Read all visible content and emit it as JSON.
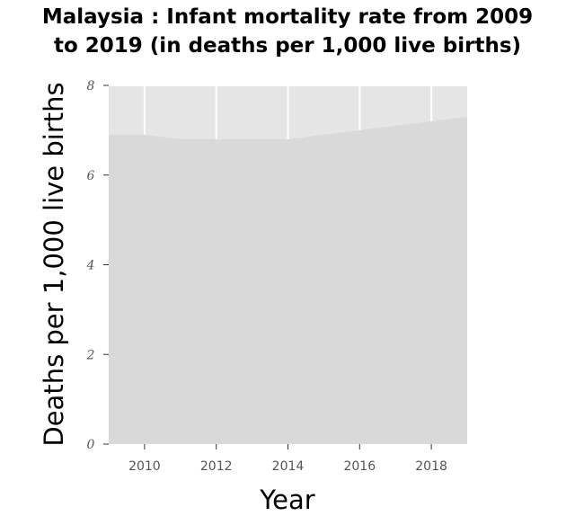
{
  "chart_data": {
    "type": "area",
    "title_lines": [
      "Malaysia : Infant mortality rate from 2009",
      "to 2019 (in deaths per 1,000 live births)"
    ],
    "xlabel": "Year",
    "ylabel": "Deaths per 1,000 live births",
    "x": [
      2009,
      2010,
      2011,
      2012,
      2013,
      2014,
      2015,
      2016,
      2017,
      2018,
      2019
    ],
    "series": [
      {
        "values": [
          6.9,
          6.9,
          6.8,
          6.8,
          6.8,
          6.8,
          6.9,
          7.0,
          7.1,
          7.2,
          7.3
        ]
      }
    ],
    "xlim": [
      2009,
      2019
    ],
    "ylim": [
      0,
      8
    ],
    "xticks": [
      "2010",
      "2012",
      "2014",
      "2016",
      "2018"
    ],
    "yticks": [
      "0",
      "2",
      "4",
      "6",
      "8"
    ],
    "grid": true,
    "colors": {
      "background": "#e5e5e5",
      "area_fill": "#d9d9d9",
      "grid": "#ffffff"
    }
  }
}
